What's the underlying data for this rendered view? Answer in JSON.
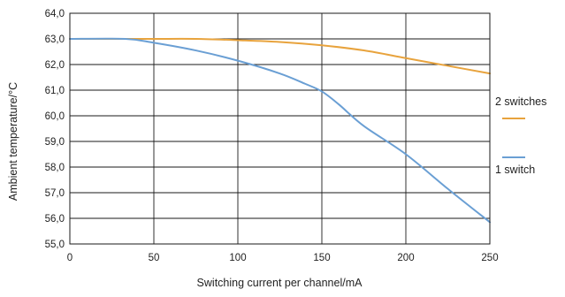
{
  "chart_data": {
    "type": "line",
    "title": "",
    "xlabel": "Switching current per channel/mA",
    "ylabel": "Ambient temperature/°C",
    "xlim": [
      0,
      250
    ],
    "ylim": [
      55,
      64
    ],
    "x_ticks": [
      0,
      50,
      100,
      150,
      200,
      250
    ],
    "x_tick_labels": [
      "0",
      "50",
      "100",
      "150",
      "200",
      "250"
    ],
    "y_ticks": [
      55,
      56,
      57,
      58,
      59,
      60,
      61,
      62,
      63,
      64
    ],
    "y_tick_labels": [
      "55,0",
      "56,0",
      "57,0",
      "58,0",
      "59,0",
      "60,0",
      "61,0",
      "62,0",
      "63,0",
      "64,0"
    ],
    "grid": true,
    "legend_position": "right",
    "series": [
      {
        "name": "2 switches",
        "color": "#E8A33D",
        "x": [
          0,
          25,
          50,
          75,
          100,
          125,
          150,
          175,
          200,
          225,
          250
        ],
        "y": [
          63.0,
          63.0,
          63.0,
          63.0,
          62.95,
          62.88,
          62.75,
          62.55,
          62.25,
          61.95,
          61.65
        ]
      },
      {
        "name": "1 switch",
        "color": "#6A9FD4",
        "x": [
          0,
          33,
          50,
          75,
          100,
          125,
          140,
          150,
          160,
          175,
          200,
          225,
          250
        ],
        "y": [
          63.0,
          63.0,
          62.85,
          62.55,
          62.15,
          61.65,
          61.25,
          60.95,
          60.45,
          59.6,
          58.5,
          57.15,
          55.85
        ]
      }
    ]
  }
}
